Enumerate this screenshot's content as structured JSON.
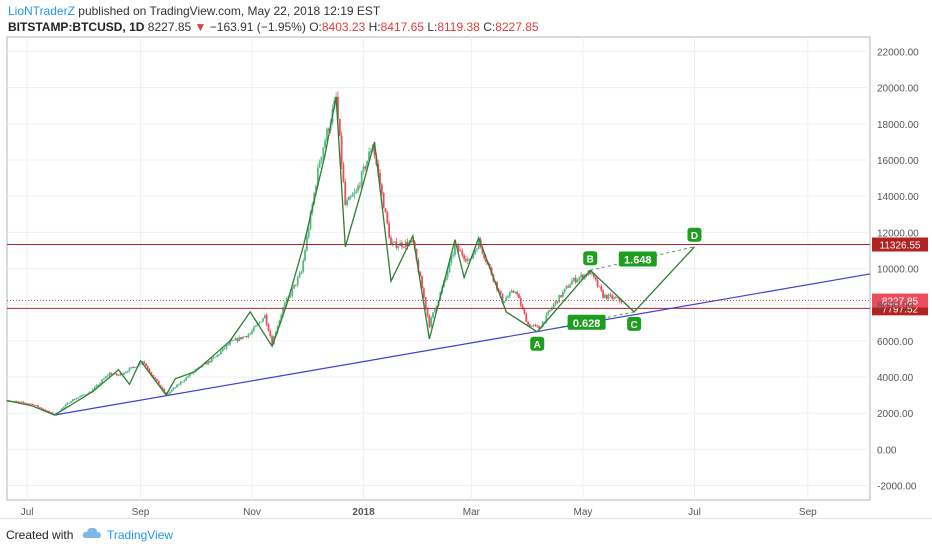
{
  "header": {
    "author": "LioNTraderZ",
    "published_text": "published on TradingView.com, May 22, 2018 12:19 EST",
    "symbol": "BITSTAMP:BTCUSD, 1D",
    "last": "8227.85",
    "change": "−163.91 (−1.95%)",
    "open_label": "O:",
    "open": "8403.23",
    "high_label": "H:",
    "high": "8417.65",
    "low_label": "L:",
    "low": "8119.38",
    "close_label": "C:",
    "close": "8227.85"
  },
  "footer": {
    "created_with": "Created with",
    "brand": "TradingView"
  },
  "colors": {
    "up": "#53b987",
    "down": "#eb4d5c",
    "wave": "#2e7d32",
    "trendline": "#3f3fd6",
    "hline": "#b22222",
    "label_bg": "#1e9e1e"
  },
  "chart_data": {
    "type": "candlestick",
    "x_range": [
      "2018-06-12",
      "2018-09-30"
    ],
    "x_is_2017_2018": true,
    "xlim": [
      "2017-06-20",
      "2018-10-05"
    ],
    "ylim": [
      -2800,
      22800
    ],
    "x_ticks": [
      {
        "label": "Jul",
        "date": "2017-07-01"
      },
      {
        "label": "Sep",
        "date": "2017-09-01"
      },
      {
        "label": "Nov",
        "date": "2017-11-01"
      },
      {
        "label": "2018",
        "date": "2018-01-01"
      },
      {
        "label": "Mar",
        "date": "2018-03-01"
      },
      {
        "label": "May",
        "date": "2018-05-01"
      },
      {
        "label": "Jul",
        "date": "2018-07-01"
      },
      {
        "label": "Sep",
        "date": "2018-09-01"
      }
    ],
    "y_ticks": [
      "22000.00",
      "20000.00",
      "18000.00",
      "16000.00",
      "14000.00",
      "12000.00",
      "10000.00",
      "8000.00",
      "6000.00",
      "4000.00",
      "2000.00",
      "0.00",
      "-2000.00"
    ],
    "price_path": [
      [
        "2017-06-20",
        2700
      ],
      [
        "2017-07-04",
        2500
      ],
      [
        "2017-07-16",
        1900
      ],
      [
        "2017-07-25",
        2700
      ],
      [
        "2017-08-05",
        3200
      ],
      [
        "2017-08-15",
        4200
      ],
      [
        "2017-08-20",
        4100
      ],
      [
        "2017-08-31",
        4700
      ],
      [
        "2017-09-02",
        4900
      ],
      [
        "2017-09-15",
        3000
      ],
      [
        "2017-09-30",
        4300
      ],
      [
        "2017-10-12",
        5100
      ],
      [
        "2017-10-20",
        5900
      ],
      [
        "2017-10-31",
        6400
      ],
      [
        "2017-11-08",
        7400
      ],
      [
        "2017-11-12",
        5900
      ],
      [
        "2017-11-18",
        7800
      ],
      [
        "2017-11-28",
        9800
      ],
      [
        "2017-12-08",
        16000
      ],
      [
        "2017-12-17",
        19400
      ],
      [
        "2017-12-22",
        13500
      ],
      [
        "2017-12-28",
        14200
      ],
      [
        "2018-01-06",
        16900
      ],
      [
        "2018-01-16",
        11300
      ],
      [
        "2018-01-28",
        11400
      ],
      [
        "2018-02-06",
        6900
      ],
      [
        "2018-02-15",
        9500
      ],
      [
        "2018-02-20",
        11200
      ],
      [
        "2018-02-28",
        10400
      ],
      [
        "2018-03-05",
        11500
      ],
      [
        "2018-03-18",
        8200
      ],
      [
        "2018-03-25",
        8800
      ],
      [
        "2018-04-01",
        6900
      ],
      [
        "2018-04-07",
        6700
      ],
      [
        "2018-04-15",
        8000
      ],
      [
        "2018-04-25",
        9300
      ],
      [
        "2018-05-05",
        9800
      ],
      [
        "2018-05-12",
        8500
      ],
      [
        "2018-05-22",
        8228
      ]
    ],
    "hlines": [
      {
        "value": 11326.55,
        "label": "11326.55"
      },
      {
        "value": 7797.52,
        "label": "7797.52"
      }
    ],
    "last_price": {
      "value": 8227.85,
      "label": "8227.85"
    },
    "trendline": {
      "x1": "2017-07-16",
      "y1": 1900,
      "x2": "2018-10-05",
      "y2": 9700
    },
    "wave_path": [
      [
        "2017-06-20",
        2700
      ],
      [
        "2017-07-04",
        2400
      ],
      [
        "2017-07-16",
        1900
      ],
      [
        "2017-08-06",
        3200
      ],
      [
        "2017-08-20",
        4400
      ],
      [
        "2017-08-26",
        3600
      ],
      [
        "2017-09-01",
        4900
      ],
      [
        "2017-09-15",
        3000
      ],
      [
        "2017-09-20",
        3900
      ],
      [
        "2017-10-01",
        4300
      ],
      [
        "2017-10-20",
        6000
      ],
      [
        "2017-10-31",
        7600
      ],
      [
        "2017-11-12",
        5700
      ],
      [
        "2017-11-20",
        8000
      ],
      [
        "2017-11-29",
        11200
      ],
      [
        "2017-12-11",
        16300
      ],
      [
        "2017-12-17",
        19500
      ],
      [
        "2017-12-22",
        11200
      ],
      [
        "2017-12-30",
        14000
      ],
      [
        "2018-01-07",
        17000
      ],
      [
        "2018-01-16",
        9300
      ],
      [
        "2018-01-28",
        11800
      ],
      [
        "2018-02-06",
        6100
      ],
      [
        "2018-02-20",
        11600
      ],
      [
        "2018-02-25",
        9500
      ],
      [
        "2018-03-05",
        11700
      ],
      [
        "2018-03-20",
        7600
      ],
      [
        "2018-04-06",
        6500
      ]
    ],
    "harmonic": {
      "points": [
        {
          "name": "A",
          "date": "2018-04-06",
          "value": 6500
        },
        {
          "name": "B",
          "date": "2018-05-05",
          "value": 9900
        },
        {
          "name": "C",
          "date": "2018-05-29",
          "value": 7600
        },
        {
          "name": "D",
          "date": "2018-07-01",
          "value": 11200
        }
      ],
      "ratios": [
        {
          "label": "0.628",
          "date": "2018-05-03",
          "value": 7000
        },
        {
          "label": "1.648",
          "date": "2018-05-31",
          "value": 10500
        }
      ]
    }
  }
}
